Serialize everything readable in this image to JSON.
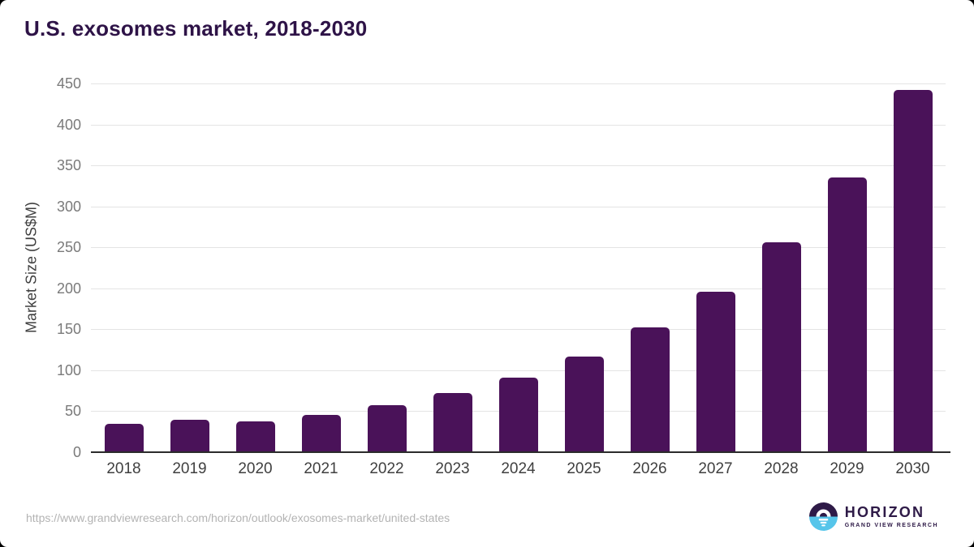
{
  "page": {
    "title": "U.S. exosomes market, 2018-2030",
    "source_url": "https://www.grandviewresearch.com/horizon/outlook/exosomes-market/united-states"
  },
  "chart_data": {
    "type": "bar",
    "title": "U.S. exosomes market, 2018-2030",
    "xlabel": "",
    "ylabel": "Market Size (US$M)",
    "categories": [
      "2018",
      "2019",
      "2020",
      "2021",
      "2022",
      "2023",
      "2024",
      "2025",
      "2026",
      "2027",
      "2028",
      "2029",
      "2030"
    ],
    "values": [
      35,
      40,
      38,
      46,
      57,
      72,
      91,
      117,
      152,
      196,
      256,
      335,
      442
    ],
    "ylim": [
      0,
      450
    ],
    "ytick_step": 50,
    "grid": true,
    "legend": false
  },
  "logo": {
    "brand": "HORIZON",
    "subtitle": "GRAND VIEW RESEARCH",
    "icon": "horizon-sun-over-water"
  },
  "colors": {
    "bar": "#4a1259",
    "title": "#2e1347",
    "axis_line": "#2b2b2b",
    "gridline": "#e4e4e4",
    "y_tick_text": "#7a7a7a",
    "x_tick_text": "#3f3f3f",
    "axis_title_text": "#3f3f3f",
    "source_text": "#b3b3b3",
    "logo_purple": "#2e1a47",
    "logo_blue": "#56c5ea",
    "background": "#ffffff"
  }
}
